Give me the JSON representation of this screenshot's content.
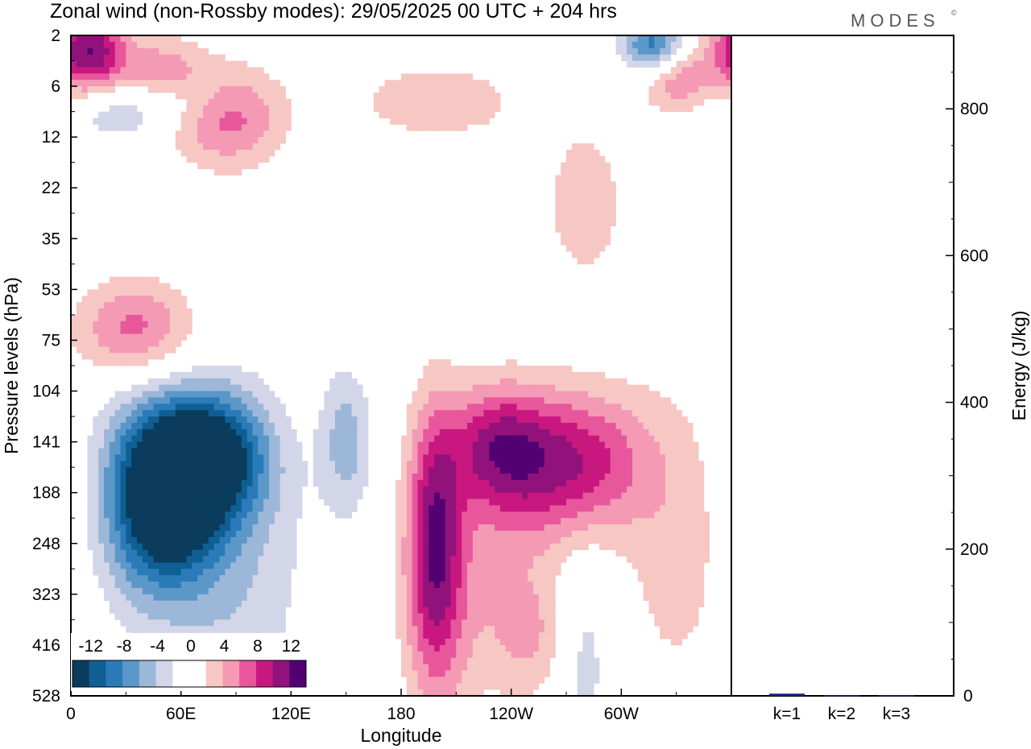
{
  "header": {
    "title": "Zonal wind (non-Rossby modes):  29/05/2025  00 UTC  + 204 hrs",
    "brand": "MODES",
    "brand_mark": "©"
  },
  "colors": {
    "negative": [
      "#0b3c5d",
      "#0f5f95",
      "#2a7bb8",
      "#5b98c9",
      "#9db7d8",
      "#d3d6e8"
    ],
    "zero": "#ffffff",
    "positive": [
      "#f7c7c4",
      "#f49ab5",
      "#e8579c",
      "#c8187f",
      "#92127b",
      "#520072"
    ],
    "energy_bar": "#1a237e"
  },
  "chart_data": [
    {
      "type": "heatmap",
      "title": "Zonal wind (non-Rossby modes):  29/05/2025  00 UTC  + 204 hrs",
      "xlabel": "Longitude",
      "ylabel": "Pressure levels (hPa)",
      "x_ticks": [
        "0",
        "60E",
        "120E",
        "180",
        "120W",
        "60W"
      ],
      "x_tick_degrees": [
        0,
        60,
        120,
        180,
        240,
        300
      ],
      "xlim": [
        0,
        360
      ],
      "y_ticks": [
        "2",
        "6",
        "12",
        "22",
        "35",
        "53",
        "75",
        "104",
        "141",
        "188",
        "248",
        "323",
        "416",
        "528"
      ],
      "colorbar": {
        "labels": [
          "-12",
          "-8",
          "-4",
          "0",
          "4",
          "8",
          "12"
        ],
        "levels": [
          -14,
          -12,
          -10,
          -8,
          -6,
          -4,
          -2,
          2,
          4,
          6,
          8,
          10,
          12,
          14
        ]
      },
      "features": [
        {
          "lon": 10,
          "level": 0.3,
          "value": 12,
          "wlon": 14,
          "wlev": 0.6
        },
        {
          "lon": 50,
          "level": 0.8,
          "value": 6,
          "wlon": 16,
          "wlev": 0.5
        },
        {
          "lon": 85,
          "level": 1.6,
          "value": 7,
          "wlon": 22,
          "wlev": 0.7
        },
        {
          "lon": 60,
          "level": 1.2,
          "value": -4,
          "wlon": 18,
          "wlev": 0.4
        },
        {
          "lon": 25,
          "level": 1.5,
          "value": -4,
          "wlon": 20,
          "wlev": 0.4
        },
        {
          "lon": 318,
          "level": 0.2,
          "value": -10,
          "wlon": 12,
          "wlev": 0.4
        },
        {
          "lon": 330,
          "level": 0.8,
          "value": 6,
          "wlon": 14,
          "wlev": 0.5
        },
        {
          "lon": 200,
          "level": 1.3,
          "value": 4,
          "wlon": 30,
          "wlev": 0.5
        },
        {
          "lon": 35,
          "level": 5.8,
          "value": 7,
          "wlon": 22,
          "wlev": 0.7
        },
        {
          "lon": 280,
          "level": 3.3,
          "value": 4,
          "wlon": 14,
          "wlev": 1.0
        },
        {
          "lon": 75,
          "level": 8.3,
          "value": -14,
          "wlon": 22,
          "wlev": 0.9
        },
        {
          "lon": 55,
          "level": 9.2,
          "value": -12,
          "wlon": 18,
          "wlev": 1.1
        },
        {
          "lon": 35,
          "level": 9.0,
          "value": -6,
          "wlon": 18,
          "wlev": 1.5
        },
        {
          "lon": 85,
          "level": 10.5,
          "value": -4,
          "wlon": 30,
          "wlev": 2.0
        },
        {
          "lon": 150,
          "level": 8.0,
          "value": -5,
          "wlon": 10,
          "wlev": 1.0
        },
        {
          "lon": 198,
          "level": 9.8,
          "value": 8,
          "wlon": 10,
          "wlev": 1.8
        },
        {
          "lon": 200,
          "level": 11.0,
          "value": 4,
          "wlon": 14,
          "wlev": 2.0
        },
        {
          "lon": 255,
          "level": 8.4,
          "value": 8,
          "wlon": 26,
          "wlev": 1.0
        },
        {
          "lon": 230,
          "level": 8.0,
          "value": 6,
          "wlon": 18,
          "wlev": 0.8
        },
        {
          "lon": 290,
          "level": 8.4,
          "value": 5,
          "wlon": 22,
          "wlev": 1.0
        },
        {
          "lon": 230,
          "level": 10.6,
          "value": 3,
          "wlon": 26,
          "wlev": 1.8
        },
        {
          "lon": 330,
          "level": 10.0,
          "value": 3,
          "wlon": 20,
          "wlev": 2.2
        },
        {
          "lon": 280,
          "level": 12.3,
          "value": -3,
          "wlon": 10,
          "wlev": 1.5
        },
        {
          "lon": 250,
          "level": 11.8,
          "value": 3,
          "wlon": 14,
          "wlev": 0.8
        }
      ]
    },
    {
      "type": "bar",
      "ylabel": "Energy (J/kg)",
      "categories": [
        "k=1",
        "k=2",
        "k=3"
      ],
      "values": [
        3,
        1,
        1
      ],
      "ylim": [
        0,
        900
      ],
      "y_ticks": [
        "200",
        "400",
        "600",
        "800"
      ],
      "y_tick_values": [
        200,
        400,
        600,
        800
      ]
    }
  ]
}
